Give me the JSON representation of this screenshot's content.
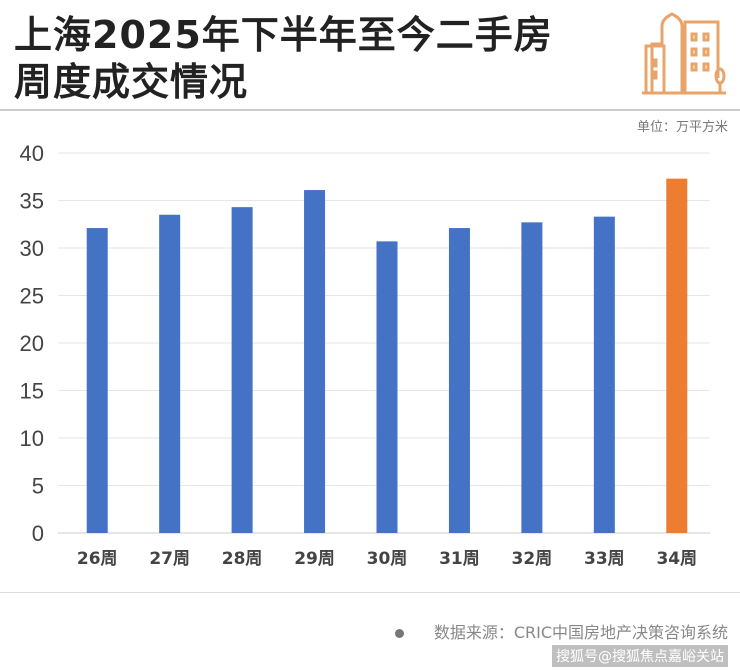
{
  "title_line1": "上海2025年下半年至今二手房",
  "title_line2": "周度成交情况",
  "unit": "单位：万平方米",
  "source": "数据来源：CRIC中国房地产决策咨询系统",
  "watermark": "搜狐号@搜狐焦点嘉峪关站",
  "colors": {
    "bar": "#4472C4",
    "highlight": "#ED7D31",
    "icon": "#E8A46A"
  },
  "icon": "buildings-icon",
  "chart_data": {
    "type": "bar",
    "title": "上海2025年下半年至今二手房周度成交情况",
    "ylabel": "单位：万平方米",
    "categories": [
      "26周",
      "27周",
      "28周",
      "29周",
      "30周",
      "31周",
      "32周",
      "33周",
      "34周"
    ],
    "values": [
      32.1,
      33.5,
      34.3,
      36.1,
      30.7,
      32.1,
      32.7,
      33.3,
      37.3
    ],
    "highlight_index": 8,
    "ylim": [
      0,
      40
    ],
    "yticks": [
      0,
      5,
      10,
      15,
      20,
      25,
      30,
      35,
      40
    ],
    "grid": true
  }
}
